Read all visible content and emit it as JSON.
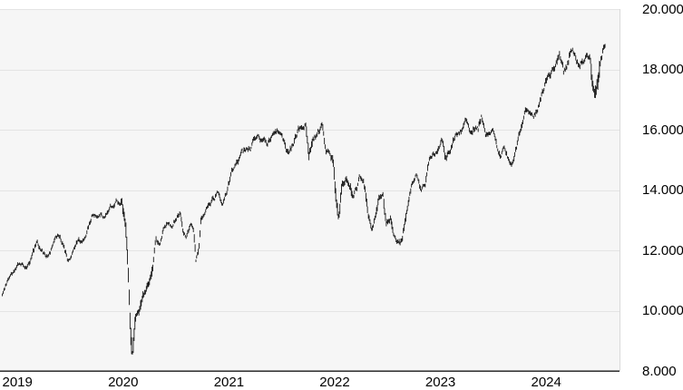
{
  "chart_data": {
    "type": "line",
    "style": "daily-high-low-price-bars",
    "title": "",
    "legend": false,
    "grid": "horizontal",
    "number_format": "de-DE",
    "colors": {
      "bar": "#0d0d0d",
      "grid": "#e4e4e4",
      "plot_background": "#f6f6f6",
      "page_background": "#ffffff",
      "bottom_axis_line": "#1a1a1a",
      "right_edge_line": "#d9d9d9",
      "label_text": "#000000"
    },
    "y_axis": {
      "side": "right",
      "range": [
        8000,
        20000
      ],
      "tick_values": [
        20000,
        18000,
        16000,
        14000,
        12000,
        10000,
        8000
      ],
      "tick_labels": [
        "20.000",
        "18.000",
        "16.000",
        "14.000",
        "12.000",
        "10.000",
        "8.000"
      ]
    },
    "x_axis": {
      "range": [
        2019.0,
        2024.705
      ],
      "tick_values": [
        2019,
        2020,
        2021,
        2022,
        2023,
        2024
      ],
      "tick_labels": [
        "2019",
        "2020",
        "2021",
        "2022",
        "2023",
        "2024"
      ]
    },
    "series": [
      {
        "name": "index-price",
        "points_format": [
          "year_fraction",
          "index_value"
        ],
        "points": [
          [
            2019.0,
            10560
          ],
          [
            2019.05,
            11000
          ],
          [
            2019.1,
            11150
          ],
          [
            2019.15,
            11450
          ],
          [
            2019.22,
            11400
          ],
          [
            2019.25,
            11550
          ],
          [
            2019.3,
            12000
          ],
          [
            2019.33,
            12310
          ],
          [
            2019.4,
            11850
          ],
          [
            2019.45,
            11950
          ],
          [
            2019.5,
            12350
          ],
          [
            2019.53,
            12550
          ],
          [
            2019.58,
            12150
          ],
          [
            2019.62,
            11650
          ],
          [
            2019.65,
            11700
          ],
          [
            2019.7,
            12150
          ],
          [
            2019.75,
            12350
          ],
          [
            2019.8,
            12650
          ],
          [
            2019.85,
            13150
          ],
          [
            2019.9,
            13250
          ],
          [
            2019.95,
            13200
          ],
          [
            2020.0,
            13300
          ],
          [
            2020.05,
            13500
          ],
          [
            2020.1,
            13600
          ],
          [
            2020.13,
            13700
          ],
          [
            2020.17,
            12700
          ],
          [
            2020.19,
            11500
          ],
          [
            2020.21,
            9500
          ],
          [
            2020.23,
            8600
          ],
          [
            2020.26,
            9800
          ],
          [
            2020.29,
            9900
          ],
          [
            2020.33,
            10500
          ],
          [
            2020.38,
            10800
          ],
          [
            2020.42,
            11300
          ],
          [
            2020.45,
            12400
          ],
          [
            2020.49,
            12100
          ],
          [
            2020.52,
            12600
          ],
          [
            2020.56,
            12850
          ],
          [
            2020.6,
            12750
          ],
          [
            2020.64,
            13000
          ],
          [
            2020.68,
            13250
          ],
          [
            2020.71,
            12600
          ],
          [
            2020.74,
            12500
          ],
          [
            2020.78,
            13000
          ],
          [
            2020.81,
            12600
          ],
          [
            2020.83,
            11600
          ],
          [
            2020.86,
            12100
          ],
          [
            2020.88,
            13100
          ],
          [
            2020.92,
            13300
          ],
          [
            2020.96,
            13600
          ],
          [
            2021.0,
            13800
          ],
          [
            2021.04,
            13950
          ],
          [
            2021.08,
            13500
          ],
          [
            2021.12,
            14000
          ],
          [
            2021.17,
            14600
          ],
          [
            2021.21,
            14700
          ],
          [
            2021.25,
            15100
          ],
          [
            2021.29,
            15250
          ],
          [
            2021.33,
            15350
          ],
          [
            2021.38,
            15550
          ],
          [
            2021.42,
            15650
          ],
          [
            2021.46,
            15700
          ],
          [
            2021.5,
            15450
          ],
          [
            2021.54,
            15700
          ],
          [
            2021.58,
            15850
          ],
          [
            2021.62,
            15950
          ],
          [
            2021.67,
            15500
          ],
          [
            2021.71,
            15150
          ],
          [
            2021.75,
            15450
          ],
          [
            2021.79,
            15850
          ],
          [
            2021.83,
            16100
          ],
          [
            2021.87,
            16200
          ],
          [
            2021.9,
            15200
          ],
          [
            2021.94,
            15650
          ],
          [
            2022.0,
            16000
          ],
          [
            2022.02,
            16200
          ],
          [
            2022.06,
            15400
          ],
          [
            2022.1,
            15300
          ],
          [
            2022.13,
            15000
          ],
          [
            2022.15,
            14000
          ],
          [
            2022.18,
            13000
          ],
          [
            2022.21,
            14200
          ],
          [
            2022.25,
            14350
          ],
          [
            2022.29,
            14150
          ],
          [
            2022.31,
            13800
          ],
          [
            2022.35,
            14050
          ],
          [
            2022.38,
            14500
          ],
          [
            2022.42,
            14300
          ],
          [
            2022.46,
            13200
          ],
          [
            2022.49,
            12800
          ],
          [
            2022.53,
            13200
          ],
          [
            2022.56,
            13650
          ],
          [
            2022.6,
            13700
          ],
          [
            2022.63,
            12850
          ],
          [
            2022.67,
            13050
          ],
          [
            2022.7,
            12400
          ],
          [
            2022.74,
            12250
          ],
          [
            2022.78,
            12300
          ],
          [
            2022.81,
            13000
          ],
          [
            2022.85,
            13800
          ],
          [
            2022.88,
            14250
          ],
          [
            2022.92,
            14450
          ],
          [
            2022.96,
            13950
          ],
          [
            2023.0,
            14050
          ],
          [
            2023.04,
            14950
          ],
          [
            2023.08,
            15150
          ],
          [
            2023.12,
            15350
          ],
          [
            2023.16,
            15550
          ],
          [
            2023.19,
            14950
          ],
          [
            2023.23,
            15300
          ],
          [
            2023.27,
            15700
          ],
          [
            2023.31,
            15850
          ],
          [
            2023.35,
            15950
          ],
          [
            2023.38,
            16250
          ],
          [
            2023.42,
            15950
          ],
          [
            2023.46,
            16100
          ],
          [
            2023.5,
            16050
          ],
          [
            2023.53,
            16450
          ],
          [
            2023.57,
            15900
          ],
          [
            2023.6,
            15850
          ],
          [
            2023.64,
            15950
          ],
          [
            2023.67,
            15550
          ],
          [
            2023.71,
            15250
          ],
          [
            2023.74,
            15400
          ],
          [
            2023.78,
            15050
          ],
          [
            2023.82,
            14750
          ],
          [
            2023.86,
            15350
          ],
          [
            2023.9,
            15950
          ],
          [
            2023.94,
            16650
          ],
          [
            2023.97,
            16750
          ],
          [
            2024.0,
            16700
          ],
          [
            2024.04,
            16600
          ],
          [
            2024.08,
            16950
          ],
          [
            2024.12,
            17350
          ],
          [
            2024.16,
            17700
          ],
          [
            2024.2,
            17950
          ],
          [
            2024.24,
            18200
          ],
          [
            2024.27,
            18500
          ],
          [
            2024.31,
            17850
          ],
          [
            2024.35,
            18150
          ],
          [
            2024.38,
            18700
          ],
          [
            2024.42,
            18500
          ],
          [
            2024.46,
            18150
          ],
          [
            2024.5,
            18250
          ],
          [
            2024.53,
            18450
          ],
          [
            2024.56,
            18400
          ],
          [
            2024.585,
            17500
          ],
          [
            2024.6,
            17250
          ],
          [
            2024.63,
            17700
          ],
          [
            2024.655,
            18350
          ],
          [
            2024.68,
            18750
          ],
          [
            2024.705,
            18960
          ]
        ]
      }
    ],
    "volatility_periods": [
      [
        2020.12,
        2020.42,
        2.3
      ],
      [
        2021.87,
        2021.94,
        1.6
      ],
      [
        2022.1,
        2022.32,
        1.6
      ],
      [
        2022.42,
        2022.82,
        1.35
      ],
      [
        2023.16,
        2023.22,
        1.3
      ],
      [
        2024.565,
        2024.65,
        2.0
      ]
    ]
  }
}
